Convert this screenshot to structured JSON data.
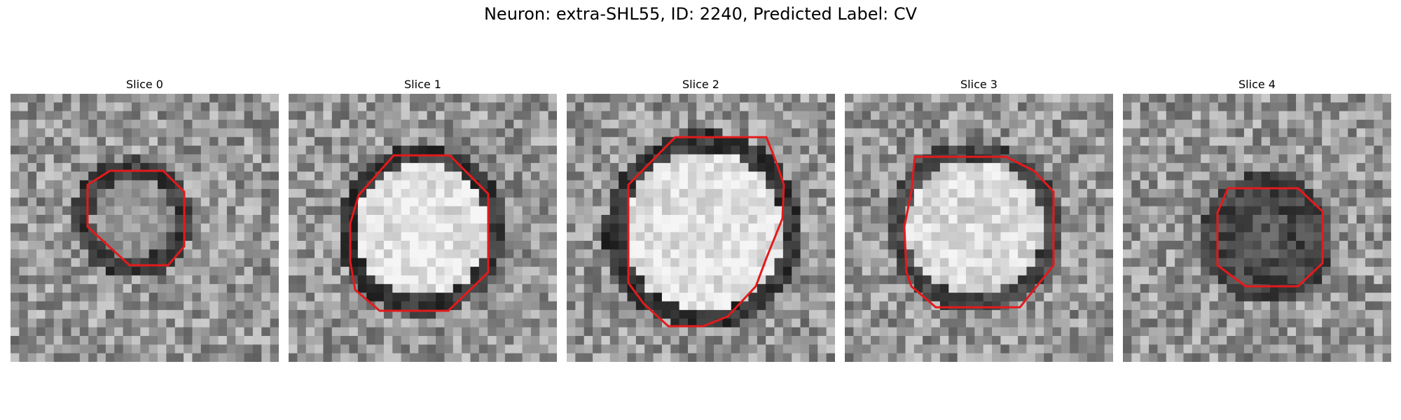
{
  "figure": {
    "title": "Neuron: extra-SHL55, ID: 2240, Predicted Label: CV"
  },
  "panels": [
    {
      "label": "Slice 0"
    },
    {
      "label": "Slice 1"
    },
    {
      "label": "Slice 2"
    },
    {
      "label": "Slice 3"
    },
    {
      "label": "Slice 4"
    }
  ],
  "colors": {
    "contour": "#e41a1c",
    "colormap": "gray"
  }
}
